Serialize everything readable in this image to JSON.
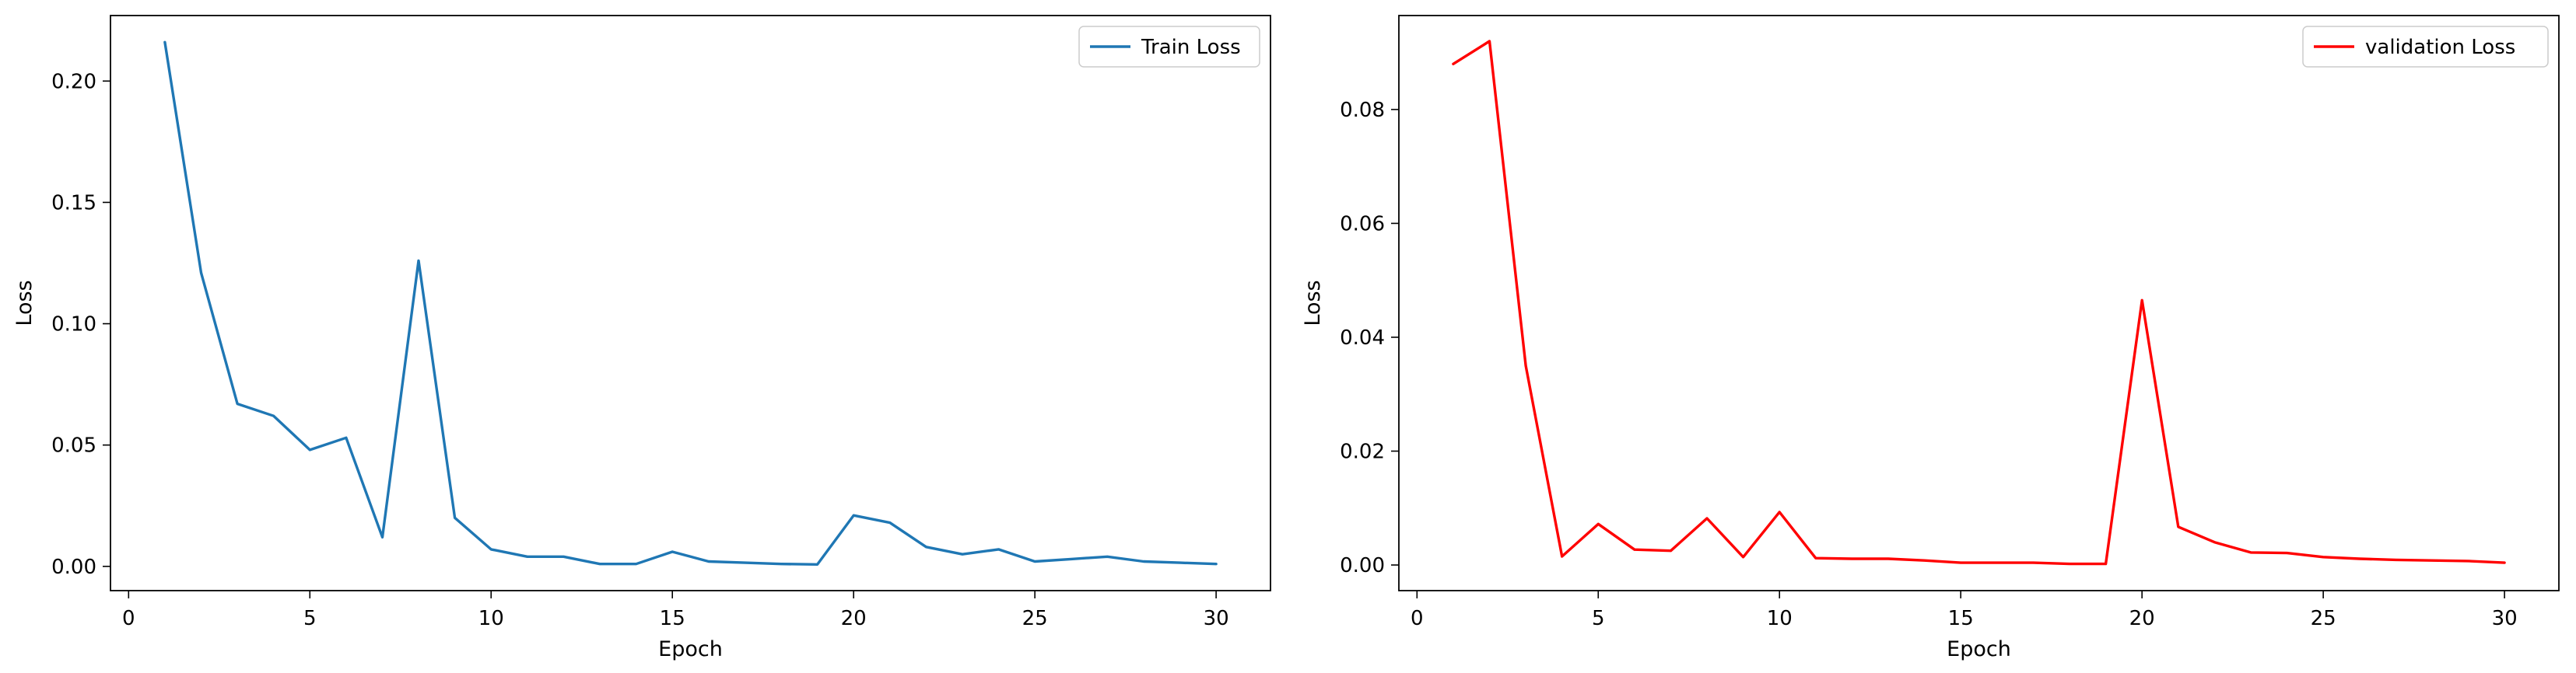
{
  "chart_data": [
    {
      "type": "line",
      "title": "",
      "xlabel": "Epoch",
      "ylabel": "Loss",
      "xlim": [
        -0.5,
        31.5
      ],
      "ylim": [
        -0.01,
        0.227
      ],
      "xticks": [
        0,
        5,
        10,
        15,
        20,
        25,
        30
      ],
      "yticks": [
        0.0,
        0.05,
        0.1,
        0.15,
        0.2
      ],
      "ytick_labels": [
        "0.00",
        "0.05",
        "0.10",
        "0.15",
        "0.20"
      ],
      "grid": false,
      "legend": "top-right",
      "series": [
        {
          "name": "Train Loss",
          "color": "#1f77b4",
          "x": [
            1,
            2,
            3,
            4,
            5,
            6,
            7,
            8,
            9,
            10,
            11,
            12,
            13,
            14,
            15,
            16,
            17,
            18,
            19,
            20,
            21,
            22,
            23,
            24,
            25,
            26,
            27,
            28,
            29,
            30
          ],
          "y": [
            0.216,
            0.121,
            0.067,
            0.062,
            0.048,
            0.053,
            0.012,
            0.126,
            0.02,
            0.007,
            0.004,
            0.004,
            0.001,
            0.001,
            0.006,
            0.002,
            0.0015,
            0.001,
            0.0008,
            0.021,
            0.018,
            0.008,
            0.005,
            0.007,
            0.002,
            0.003,
            0.004,
            0.002,
            0.0015,
            0.001
          ]
        }
      ]
    },
    {
      "type": "line",
      "title": "",
      "xlabel": "Epoch",
      "ylabel": "Loss",
      "xlim": [
        -0.5,
        31.5
      ],
      "ylim": [
        -0.0045,
        0.0965
      ],
      "xticks": [
        0,
        5,
        10,
        15,
        20,
        25,
        30
      ],
      "yticks": [
        0.0,
        0.02,
        0.04,
        0.06,
        0.08
      ],
      "ytick_labels": [
        "0.00",
        "0.02",
        "0.04",
        "0.06",
        "0.08"
      ],
      "grid": false,
      "legend": "top-right",
      "series": [
        {
          "name": "validation Loss",
          "color": "#ff0000",
          "x": [
            1,
            2,
            3,
            4,
            5,
            6,
            7,
            8,
            9,
            10,
            11,
            12,
            13,
            14,
            15,
            16,
            17,
            18,
            19,
            20,
            21,
            22,
            23,
            24,
            25,
            26,
            27,
            28,
            29,
            30
          ],
          "y": [
            0.088,
            0.092,
            0.035,
            0.0015,
            0.0072,
            0.0027,
            0.0025,
            0.0082,
            0.0014,
            0.0093,
            0.0012,
            0.0011,
            0.0011,
            0.0008,
            0.0004,
            0.0004,
            0.0004,
            0.0002,
            0.0002,
            0.0465,
            0.0067,
            0.004,
            0.0022,
            0.0021,
            0.0014,
            0.0011,
            0.0009,
            0.0008,
            0.0007,
            0.0004
          ]
        }
      ]
    }
  ]
}
